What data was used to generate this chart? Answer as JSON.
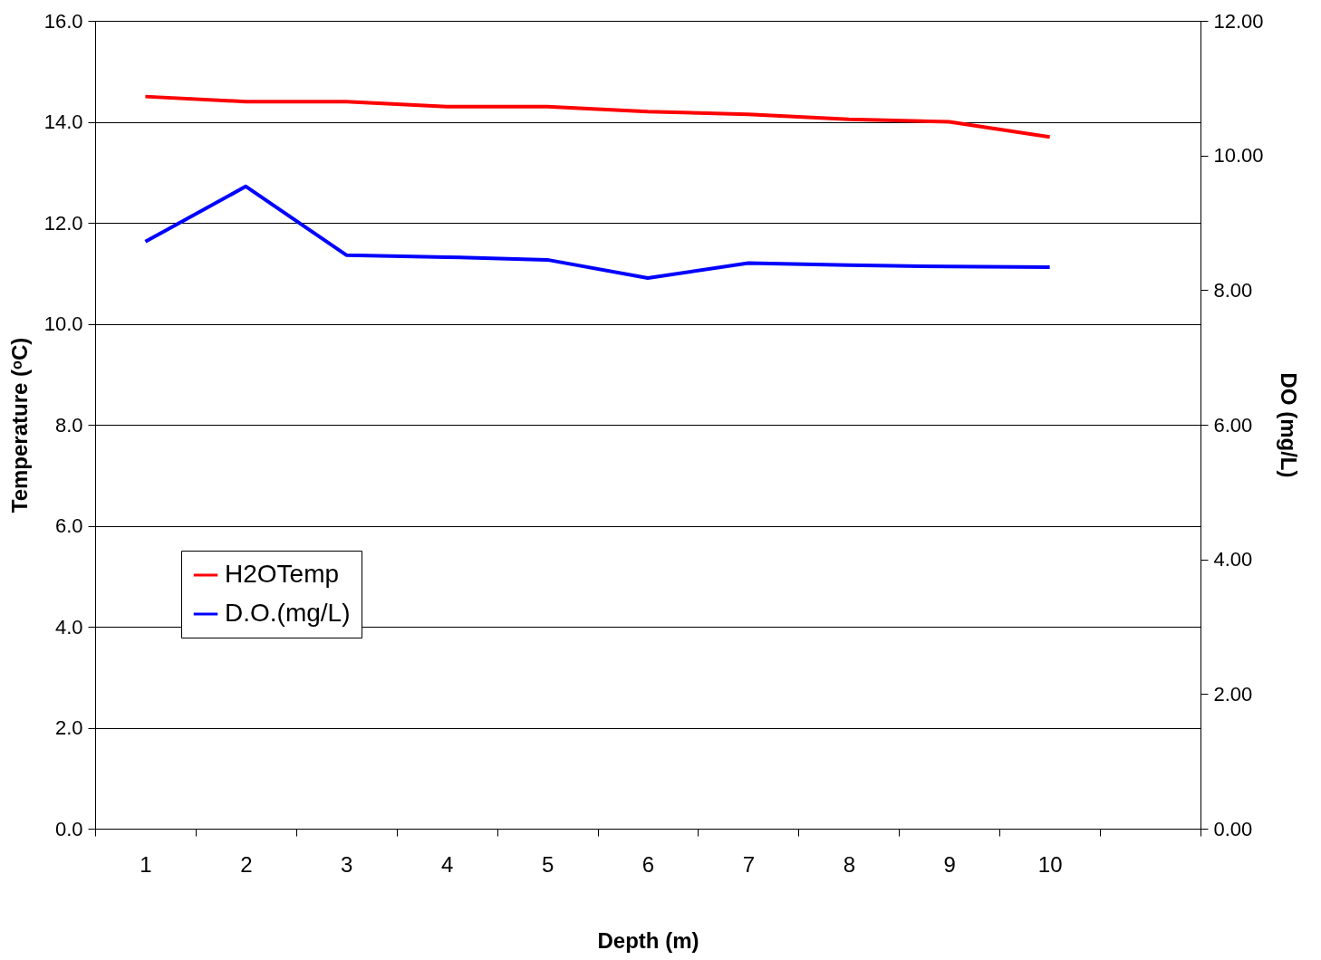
{
  "chart_data": {
    "type": "line",
    "xlabel": "Depth (m)",
    "ylabel": "Temperature (ᵒC)",
    "y2label": "DO (mg/L)",
    "categories": [
      "1",
      "2",
      "3",
      "4",
      "5",
      "6",
      "7",
      "8",
      "9",
      "10",
      null
    ],
    "series": [
      {
        "name": "H2OTemp",
        "color": "#ff0000",
        "values": [
          14.5,
          14.4,
          14.4,
          14.3,
          14.3,
          14.2,
          14.15,
          14.05,
          14.0,
          13.7,
          null
        ]
      },
      {
        "name": "D.O.(mg/L)",
        "color": "#0000ff",
        "axis": "y2",
        "values": [
          8.72,
          9.54,
          8.52,
          8.49,
          8.45,
          8.18,
          8.4,
          8.37,
          8.35,
          8.34,
          null
        ]
      }
    ],
    "ylim": [
      0,
      16
    ],
    "yticks": [
      {
        "value": 0,
        "label": "0.0"
      },
      {
        "value": 2,
        "label": "2.0"
      },
      {
        "value": 4,
        "label": "4.0"
      },
      {
        "value": 6,
        "label": "6.0"
      },
      {
        "value": 8,
        "label": "8.0"
      },
      {
        "value": 10,
        "label": "10.0"
      },
      {
        "value": 12,
        "label": "12.0"
      },
      {
        "value": 14,
        "label": "14.0"
      },
      {
        "value": 16,
        "label": "16.0"
      }
    ],
    "y2lim": [
      0,
      12
    ],
    "y2ticks": [
      {
        "value": 0,
        "label": "0.00"
      },
      {
        "value": 2,
        "label": "2.00"
      },
      {
        "value": 4,
        "label": "4.00"
      },
      {
        "value": 6,
        "label": "6.00"
      },
      {
        "value": 8,
        "label": "8.00"
      },
      {
        "value": 10,
        "label": "10.00"
      },
      {
        "value": 12,
        "label": "12.00"
      }
    ],
    "grid": "y",
    "legend": "bottom left",
    "marker": "none",
    "line_style": "solid"
  }
}
